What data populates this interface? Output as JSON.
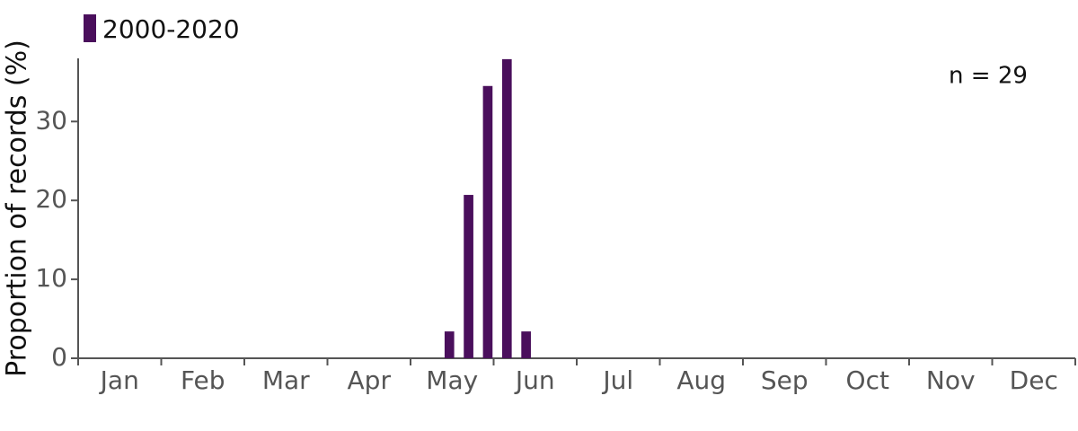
{
  "chart_data": {
    "type": "bar",
    "y_label": "Proportion of records (%)",
    "annotation": "n = 29",
    "months": [
      "Jan",
      "Feb",
      "Mar",
      "Apr",
      "May",
      "Jun",
      "Jul",
      "Aug",
      "Sep",
      "Oct",
      "Nov",
      "Dec"
    ],
    "series": [
      {
        "name": "2000-2020",
        "color": "#4a0f5c",
        "values": [
          0,
          0,
          0,
          0,
          0,
          0,
          0,
          0,
          0,
          0,
          0,
          0,
          0,
          0,
          0,
          0,
          0,
          0,
          0,
          3.4,
          20.7,
          34.5,
          37.9,
          3.4,
          0,
          0,
          0,
          0,
          0,
          0,
          0,
          0,
          0,
          0,
          0,
          0,
          0,
          0,
          0,
          0,
          0,
          0,
          0,
          0,
          0,
          0,
          0,
          0,
          0,
          0,
          0,
          0
        ]
      }
    ],
    "ylim": [
      0,
      38
    ],
    "yticks": [
      0,
      10,
      20,
      30
    ],
    "grid": false
  }
}
